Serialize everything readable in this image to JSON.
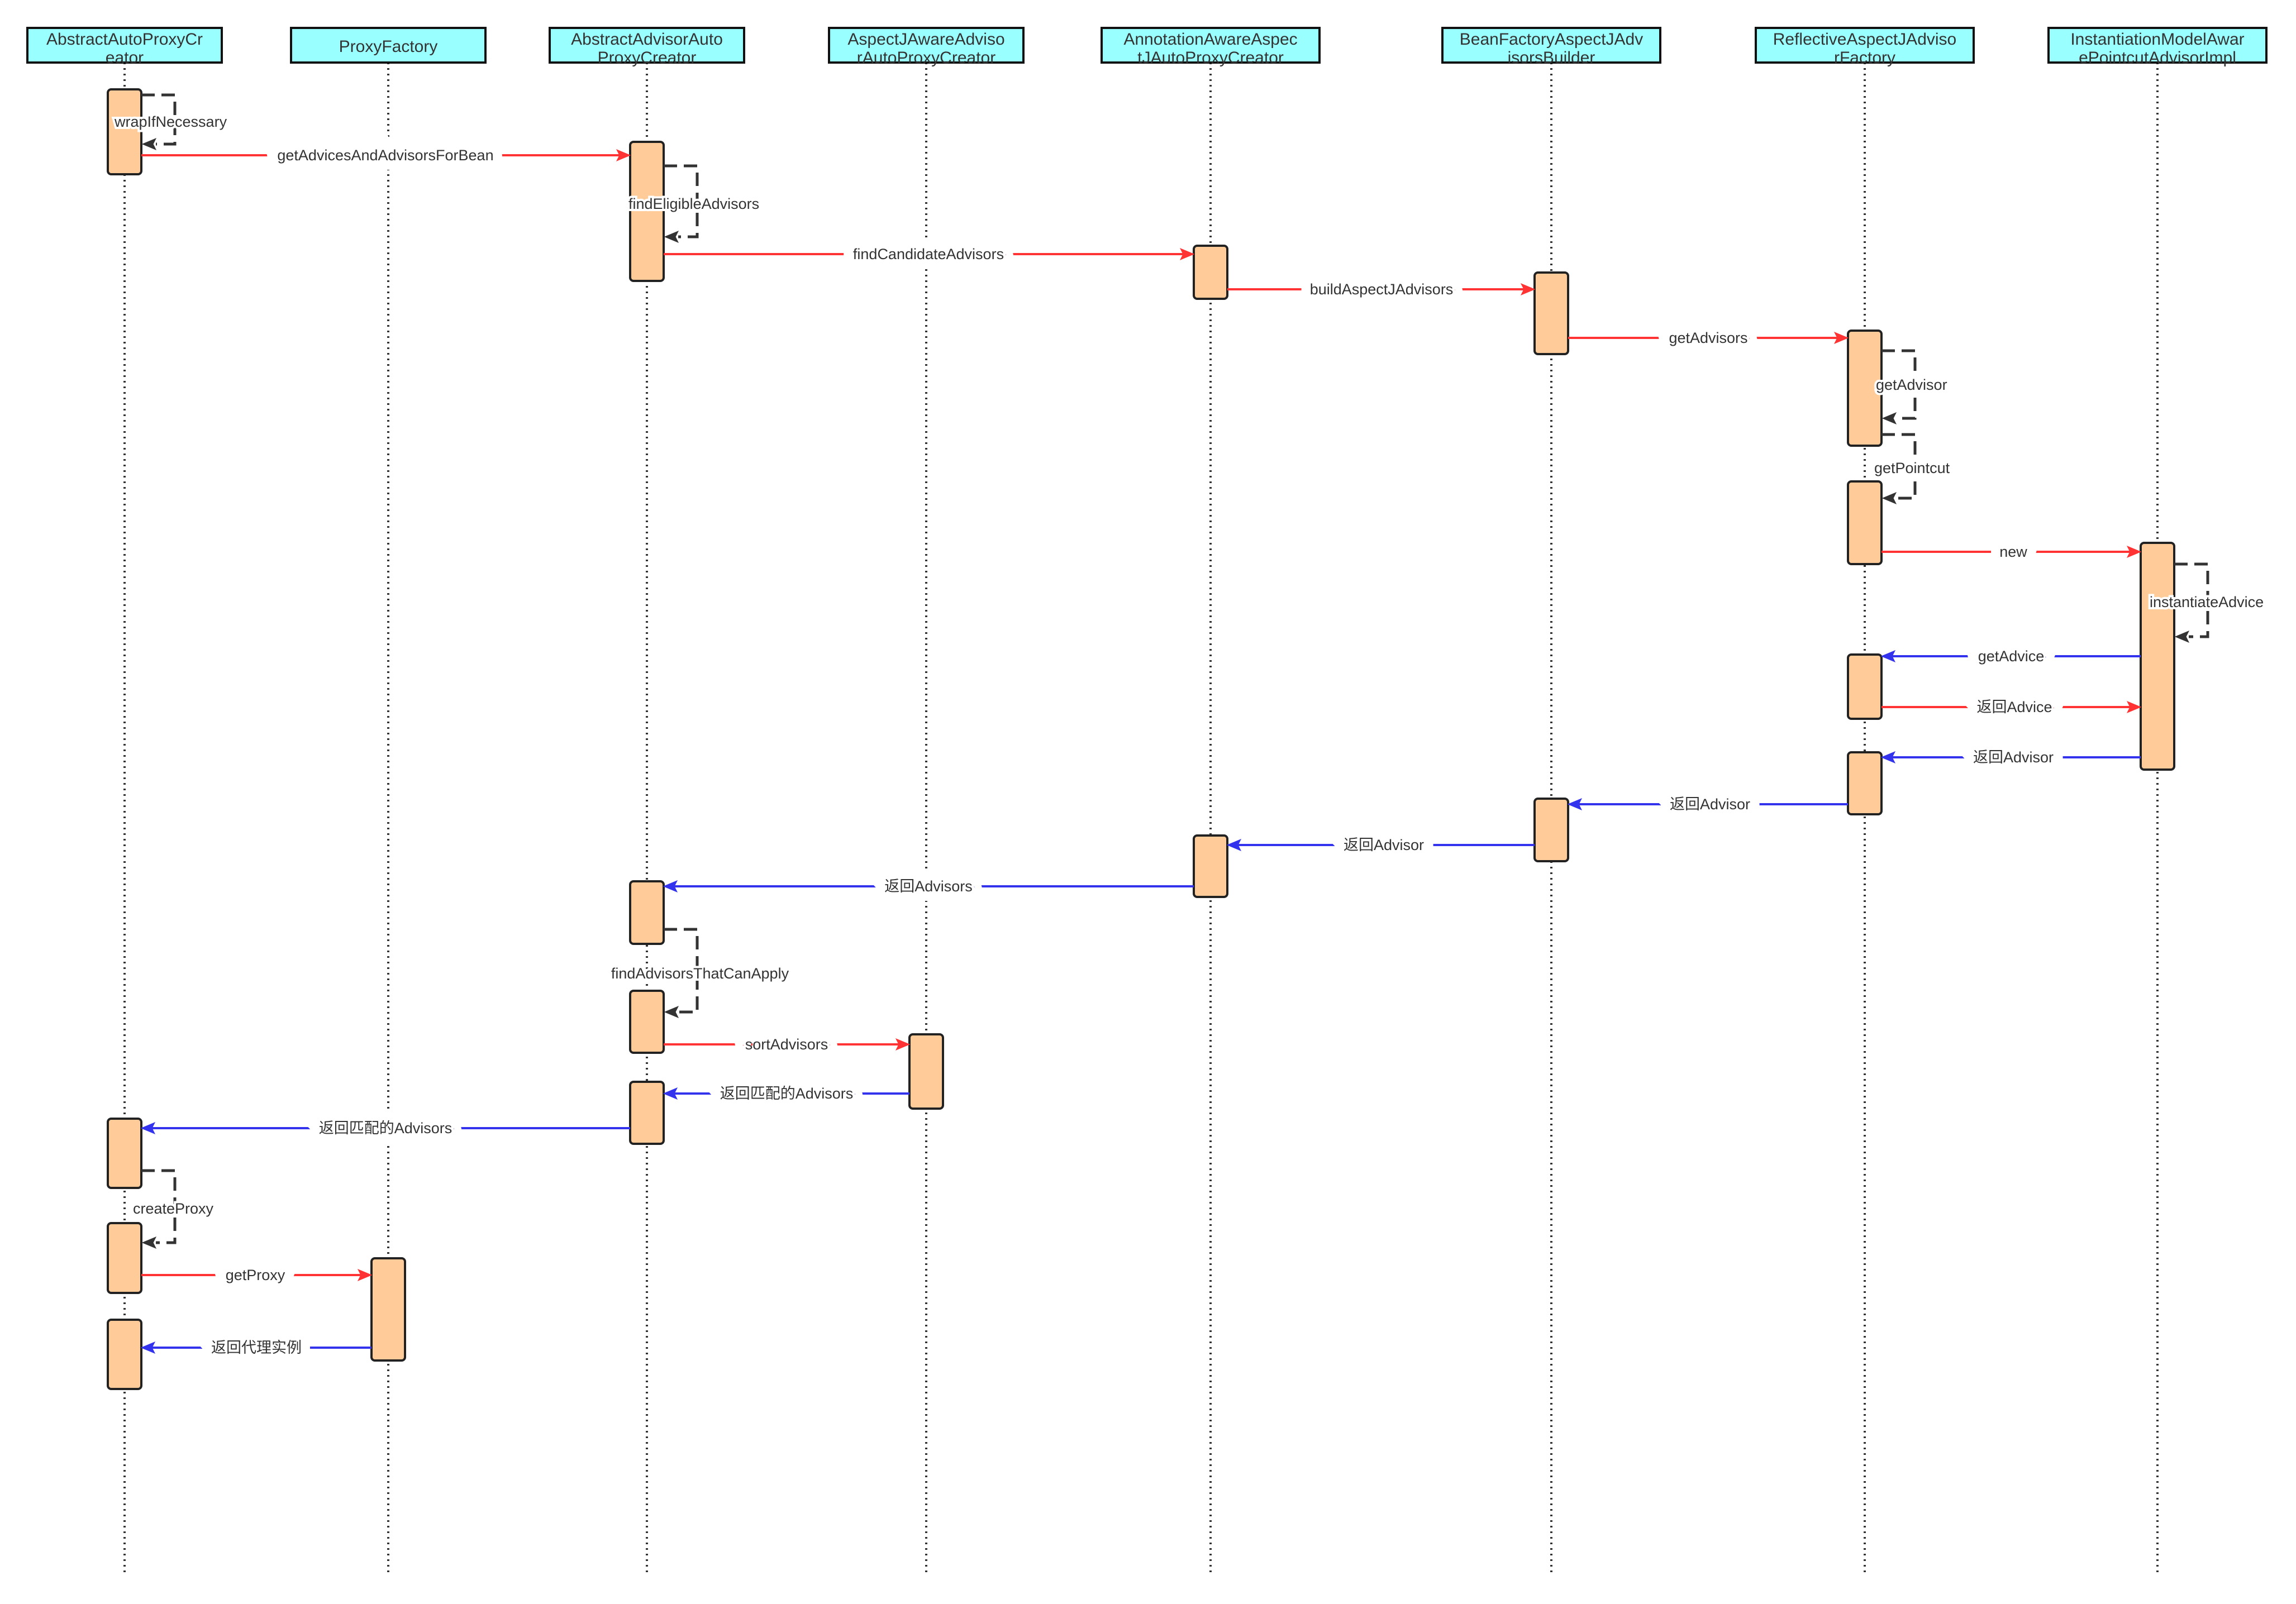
{
  "participants": [
    {
      "name": "AbstractAutoProxyCreator",
      "lines": [
        "AbstractAutoProxyCr",
        "eator"
      ]
    },
    {
      "name": "ProxyFactory",
      "lines": [
        "ProxyFactory"
      ]
    },
    {
      "name": "AbstractAdvisorAutoProxyCreator",
      "lines": [
        "AbstractAdvisorAuto",
        "ProxyCreator"
      ]
    },
    {
      "name": "AspectJAwareAdvisorAutoProxyCreator",
      "lines": [
        "AspectJAwareAdviso",
        "rAutoProxyCreator"
      ]
    },
    {
      "name": "AnnotationAwareAspectJAutoProxyCreator",
      "lines": [
        "AnnotationAwareAspec",
        "tJAutoProxyCreator"
      ]
    },
    {
      "name": "BeanFactoryAspectJAdvisorsBuilder",
      "lines": [
        "BeanFactoryAspectJAdv",
        "isorsBuilder"
      ]
    },
    {
      "name": "ReflectiveAspectJAdvisorFactory",
      "lines": [
        "ReflectiveAspectJAdviso",
        "rFactory"
      ]
    },
    {
      "name": "InstantiationModelAwarePointcutAdvisorImpl",
      "lines": [
        "InstantiationModelAwar",
        "ePointcutAdvisorImpl"
      ]
    }
  ],
  "messages": [
    {
      "from": 0,
      "to": 0,
      "kind": "self",
      "label": "wrapIfNecessary"
    },
    {
      "from": 0,
      "to": 2,
      "kind": "call",
      "label": "getAdvicesAndAdvisorsForBean"
    },
    {
      "from": 2,
      "to": 2,
      "kind": "self",
      "label": "findEligibleAdvisors"
    },
    {
      "from": 2,
      "to": 4,
      "kind": "call",
      "label": "findCandidateAdvisors"
    },
    {
      "from": 4,
      "to": 5,
      "kind": "call",
      "label": "buildAspectJAdvisors"
    },
    {
      "from": 5,
      "to": 6,
      "kind": "call",
      "label": "getAdvisors"
    },
    {
      "from": 6,
      "to": 6,
      "kind": "self",
      "label": "getAdvisor"
    },
    {
      "from": 6,
      "to": 6,
      "kind": "self",
      "label": "getPointcut"
    },
    {
      "from": 6,
      "to": 7,
      "kind": "call",
      "label": "new"
    },
    {
      "from": 7,
      "to": 7,
      "kind": "self",
      "label": "instantiateAdvice"
    },
    {
      "from": 7,
      "to": 6,
      "kind": "return",
      "label": "getAdvice"
    },
    {
      "from": 6,
      "to": 7,
      "kind": "call",
      "label": "返回Advice"
    },
    {
      "from": 7,
      "to": 6,
      "kind": "return",
      "label": "返回Advisor"
    },
    {
      "from": 6,
      "to": 5,
      "kind": "return",
      "label": "返回Advisor"
    },
    {
      "from": 5,
      "to": 4,
      "kind": "return",
      "label": "返回Advisor"
    },
    {
      "from": 4,
      "to": 2,
      "kind": "return",
      "label": "返回Advisors"
    },
    {
      "from": 2,
      "to": 2,
      "kind": "self",
      "label": "findAdvisorsThatCanApply"
    },
    {
      "from": 2,
      "to": 3,
      "kind": "call",
      "label": "sortAdvisors"
    },
    {
      "from": 3,
      "to": 2,
      "kind": "return",
      "label": "返回匹配的Advisors"
    },
    {
      "from": 2,
      "to": 0,
      "kind": "return",
      "label": "返回匹配的Advisors"
    },
    {
      "from": 0,
      "to": 0,
      "kind": "self",
      "label": "createProxy"
    },
    {
      "from": 0,
      "to": 1,
      "kind": "call",
      "label": "getProxy"
    },
    {
      "from": 1,
      "to": 0,
      "kind": "return",
      "label": "返回代理实例"
    }
  ],
  "colors": {
    "header_fill": "#99ffff",
    "activation_fill": "#ffcc99",
    "call_arrow": "#ff3333",
    "return_arrow": "#3333ee",
    "self_arrow": "#333333",
    "lifeline": "#333333",
    "text": "#333333"
  }
}
